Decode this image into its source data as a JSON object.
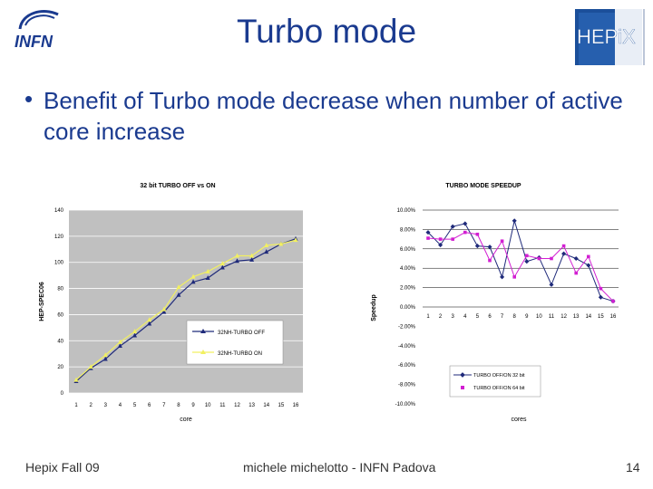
{
  "title": "Turbo mode",
  "bullet": "Benefit of Turbo mode decrease when number of active core increase",
  "logos": {
    "left_text": "INFN",
    "right_text": "HEPiX"
  },
  "footer": {
    "left": "Hepix Fall 09",
    "center": "michele michelotto - INFN Padova",
    "right": "14"
  },
  "chart_data": [
    {
      "type": "line",
      "title": "32 bit TURBO OFF vs ON",
      "xlabel": "core",
      "ylabel": "HEP-SPEC06",
      "x": [
        1,
        2,
        3,
        4,
        5,
        6,
        7,
        8,
        9,
        10,
        11,
        12,
        13,
        14,
        15,
        16
      ],
      "ylim": [
        0,
        140
      ],
      "yticks": [
        0,
        20,
        40,
        60,
        80,
        100,
        120,
        140
      ],
      "legend_position": "bottom-right",
      "series": [
        {
          "name": "32NH-TURBO OFF",
          "color": "#1f2a7a",
          "marker": "triangle",
          "values": [
            9,
            19,
            26,
            36,
            44,
            53,
            62,
            75,
            85,
            88,
            96,
            101,
            102,
            108,
            114,
            118
          ]
        },
        {
          "name": "32NH-TURBO ON",
          "color": "#f2f060",
          "marker": "triangle",
          "values": [
            10,
            20,
            29,
            39,
            47,
            56,
            64,
            81,
            89,
            93,
            99,
            105,
            105,
            113,
            114,
            117
          ]
        }
      ]
    },
    {
      "type": "line",
      "title": "TURBO MODE SPEEDUP",
      "xlabel": "cores",
      "ylabel": "Speedup",
      "x": [
        1,
        2,
        3,
        4,
        5,
        6,
        7,
        8,
        9,
        10,
        11,
        12,
        13,
        14,
        15,
        16
      ],
      "ylim": [
        -10,
        10
      ],
      "yticks": [
        "10.00%",
        "8.00%",
        "6.00%",
        "4.00%",
        "2.00%",
        "0.00%",
        "-2.00%",
        "-4.00%",
        "-6.00%",
        "-8.00%",
        "-10.00%"
      ],
      "legend_position": "bottom-right",
      "series": [
        {
          "name": "TURBO OFF/ON 32 bit",
          "color": "#1f2a7a",
          "marker": "diamond",
          "values": [
            7.7,
            6.4,
            8.3,
            8.6,
            6.3,
            6.2,
            3.1,
            8.9,
            4.7,
            5.1,
            2.3,
            5.5,
            5.0,
            4.3,
            1.0,
            0.6
          ]
        },
        {
          "name": "TURBO OFF/ON 64 bit",
          "color": "#d21fd2",
          "marker": "square",
          "values": [
            7.1,
            7.0,
            7.0,
            7.7,
            7.5,
            4.8,
            6.8,
            3.1,
            5.3,
            5.0,
            5.0,
            6.3,
            3.5,
            5.2,
            1.9,
            0.6
          ]
        }
      ]
    }
  ]
}
